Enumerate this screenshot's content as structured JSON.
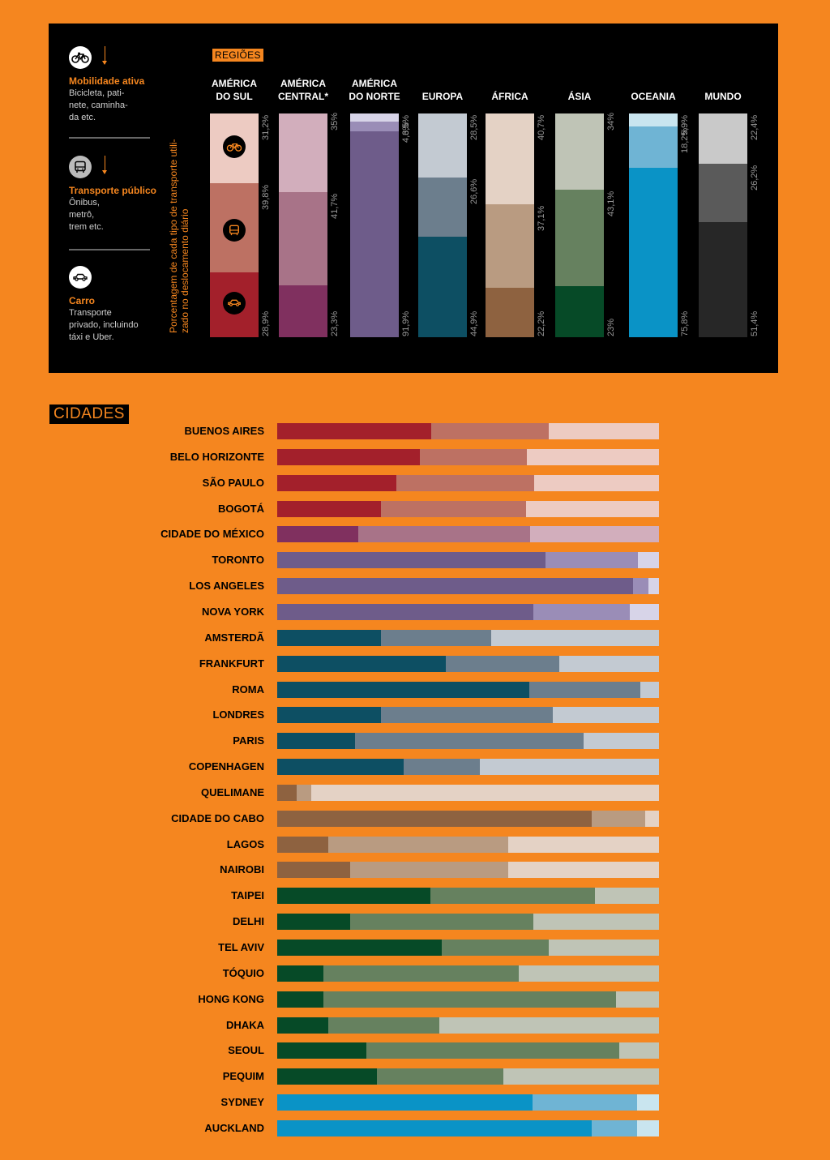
{
  "legend": [
    {
      "icon": "bicycle-icon",
      "title": "Mobilidade ativa",
      "desc": [
        "Bicicleta, pati-",
        "nete, caminha-",
        "da etc."
      ]
    },
    {
      "icon": "bus-icon",
      "title": "Transporte público",
      "desc": [
        "Ônibus,",
        "metrô,",
        "trem etc."
      ]
    },
    {
      "icon": "car-icon",
      "title": "Carro",
      "desc": [
        "Transporte",
        "privado, incluindo",
        "táxi e Uber."
      ]
    }
  ],
  "y_caption": "Porcentagem de cada tipo de transporte utili-zado no deslocamento diário",
  "regions_tag": "REGIÕES",
  "cities_tag": "CIDADES",
  "chart_data": [
    {
      "type": "bar",
      "orientation": "vertical-stacked-100",
      "series_order": [
        "active",
        "public",
        "car"
      ],
      "categories": [
        {
          "label": [
            "AMÉRICA",
            "DO SUL"
          ],
          "active": 31.2,
          "public": 39.8,
          "car": 28.9,
          "active_label": "31,2%",
          "public_label": "39,8%",
          "car_label": "28,9%",
          "colors": [
            "#EDCBC2",
            "#BD7163",
            "#A3202B"
          ]
        },
        {
          "label": [
            "AMÉRICA",
            "CENTRAL*"
          ],
          "active": 35,
          "public": 41.7,
          "car": 23.3,
          "active_label": "35%",
          "public_label": "41,7%",
          "car_label": "23,3%",
          "colors": [
            "#D2AEBC",
            "#A87388",
            "#80305F"
          ]
        },
        {
          "label": [
            "AMÉRICA",
            "DO NORTE"
          ],
          "active": 3.5,
          "public": 4.6,
          "car": 91.9,
          "active_label": "3,5%",
          "public_label": "4,6%",
          "car_label": "91,9%",
          "colors": [
            "#D7D4E8",
            "#9A8DB7",
            "#6E5C8A"
          ]
        },
        {
          "label": [
            "EUROPA"
          ],
          "active": 28.5,
          "public": 26.6,
          "car": 44.9,
          "active_label": "28,5%",
          "public_label": "26,6%",
          "car_label": "44,9%",
          "colors": [
            "#C3CAD2",
            "#6C7E8D",
            "#0D4F63"
          ]
        },
        {
          "label": [
            "ÁFRICA"
          ],
          "active": 40.7,
          "public": 37.1,
          "car": 22.2,
          "active_label": "40,7%",
          "public_label": "37,1%",
          "car_label": "22,2%",
          "colors": [
            "#E4D2C5",
            "#B99B81",
            "#8E6240"
          ]
        },
        {
          "label": [
            "ÁSIA"
          ],
          "active": 34,
          "public": 43.1,
          "car": 23,
          "active_label": "34%",
          "public_label": "43,1%",
          "car_label": "23%",
          "colors": [
            "#BFC4B6",
            "#66815F",
            "#064A27"
          ]
        },
        {
          "label": [
            "OCEANIA"
          ],
          "active": 5.9,
          "public": 18.2,
          "car": 75.8,
          "active_label": "5,9%",
          "public_label": "18,2%",
          "car_label": "75,8%",
          "colors": [
            "#C9E5EF",
            "#6FB4D4",
            "#0A93C6"
          ]
        },
        {
          "label": [
            "MUNDO"
          ],
          "active": 22.4,
          "public": 26.2,
          "car": 51.4,
          "active_label": "22,4%",
          "public_label": "26,2%",
          "car_label": "51,4%",
          "colors": [
            "#C9C9C9",
            "#5A5A5A",
            "#272727"
          ]
        }
      ]
    },
    {
      "type": "bar",
      "orientation": "horizontal-stacked-100",
      "series_order": [
        "car",
        "public",
        "active"
      ],
      "categories": [
        {
          "name": "BUENOS AIRES",
          "car": 40.3,
          "public": 30.8,
          "active": 28.9,
          "region": "AMÉRICA DO SUL"
        },
        {
          "name": "BELO HORIZONTE",
          "car": 37.4,
          "public": 28.0,
          "active": 34.6,
          "region": "AMÉRICA DO SUL"
        },
        {
          "name": "SÃO PAULO",
          "car": 31.2,
          "public": 36.1,
          "active": 32.7,
          "region": "AMÉRICA DO SUL"
        },
        {
          "name": "BOGOTÁ",
          "car": 27.2,
          "public": 38.0,
          "active": 34.8,
          "region": "AMÉRICA DO SUL"
        },
        {
          "name": "CIDADE DO MÉXICO",
          "car": 21.2,
          "public": 45.0,
          "active": 33.8,
          "region": "AMÉRICA CENTRAL"
        },
        {
          "name": "TORONTO",
          "car": 70.3,
          "public": 24.2,
          "active": 5.5,
          "region": "AMÉRICA DO NORTE"
        },
        {
          "name": "LOS ANGELES",
          "car": 93.2,
          "public": 4.0,
          "active": 2.8,
          "region": "AMÉRICA DO NORTE"
        },
        {
          "name": "NOVA YORK",
          "car": 67.1,
          "public": 25.3,
          "active": 7.6,
          "region": "AMÉRICA DO NORTE"
        },
        {
          "name": "AMSTERDÃ",
          "car": 27.2,
          "public": 28.9,
          "active": 43.9,
          "region": "EUROPA"
        },
        {
          "name": "FRANKFURT",
          "car": 44.2,
          "public": 29.7,
          "active": 26.1,
          "region": "EUROPA"
        },
        {
          "name": "ROMA",
          "car": 66.0,
          "public": 29.1,
          "active": 4.9,
          "region": "EUROPA"
        },
        {
          "name": "LONDRES",
          "car": 27.2,
          "public": 45.0,
          "active": 27.8,
          "region": "EUROPA"
        },
        {
          "name": "PARIS",
          "car": 20.4,
          "public": 59.9,
          "active": 19.7,
          "region": "EUROPA"
        },
        {
          "name": "COPENHAGEN",
          "car": 33.1,
          "public": 20.0,
          "active": 46.9,
          "region": "EUROPA"
        },
        {
          "name": "QUELIMANE",
          "car": 5.1,
          "public": 3.8,
          "active": 91.1,
          "region": "ÁFRICA"
        },
        {
          "name": "CIDADE DO CABO",
          "car": 82.4,
          "public": 14.0,
          "active": 3.6,
          "region": "ÁFRICA"
        },
        {
          "name": "LAGOS",
          "car": 13.4,
          "public": 47.1,
          "active": 39.5,
          "region": "ÁFRICA"
        },
        {
          "name": "NAIROBI",
          "car": 19.1,
          "public": 41.4,
          "active": 39.5,
          "region": "ÁFRICA"
        },
        {
          "name": "TAIPEI",
          "car": 40.1,
          "public": 43.1,
          "active": 16.8,
          "region": "ÁSIA"
        },
        {
          "name": "DELHI",
          "car": 19.1,
          "public": 48.0,
          "active": 32.9,
          "region": "ÁSIA"
        },
        {
          "name": "TEL AVIV",
          "car": 43.1,
          "public": 28.0,
          "active": 28.9,
          "region": "ÁSIA"
        },
        {
          "name": "TÓQUIO",
          "car": 12.1,
          "public": 51.2,
          "active": 36.7,
          "region": "ÁSIA"
        },
        {
          "name": "HONG KONG",
          "car": 12.1,
          "public": 76.6,
          "active": 11.3,
          "region": "ÁSIA"
        },
        {
          "name": "DHAKA",
          "car": 13.4,
          "public": 29.1,
          "active": 57.5,
          "region": "ÁSIA"
        },
        {
          "name": "SEOUL",
          "car": 23.4,
          "public": 66.2,
          "active": 10.4,
          "region": "ÁSIA"
        },
        {
          "name": "PEQUIM",
          "car": 26.1,
          "public": 33.1,
          "active": 40.8,
          "region": "ÁSIA"
        },
        {
          "name": "SYDNEY",
          "car": 66.9,
          "public": 27.4,
          "active": 5.7,
          "region": "OCEANIA"
        },
        {
          "name": "AUCKLAND",
          "car": 82.4,
          "public": 11.9,
          "active": 5.7,
          "region": "OCEANIA"
        }
      ]
    }
  ]
}
